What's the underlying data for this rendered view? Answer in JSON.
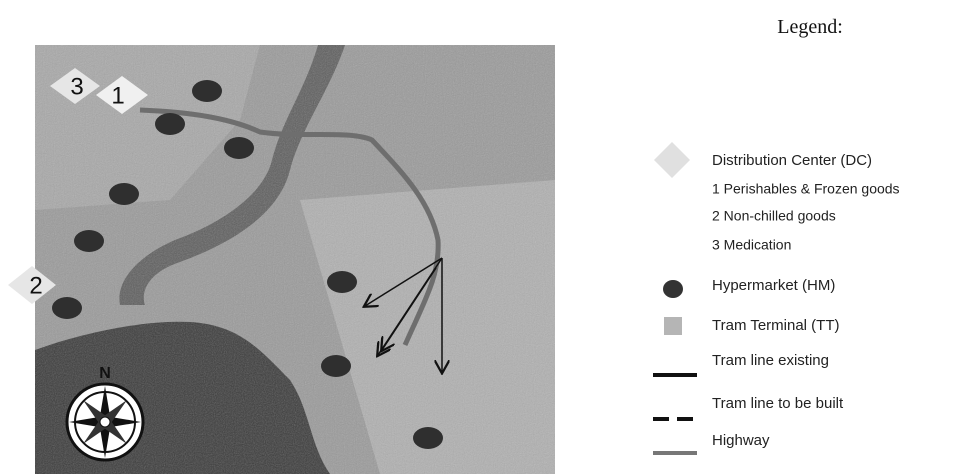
{
  "map": {
    "dc_labels": [
      "3",
      "1",
      "2"
    ],
    "compass": "N"
  },
  "legend": {
    "title": "Legend:",
    "items": [
      "Distribution Center (DC)",
      "1 Perishables & Frozen goods",
      "2 Non-chilled goods",
      "3 Medication",
      "Hypermarket (HM)",
      "Tram Terminal (TT)",
      "Tram line existing",
      "Tram line to be built",
      "Highway"
    ]
  }
}
